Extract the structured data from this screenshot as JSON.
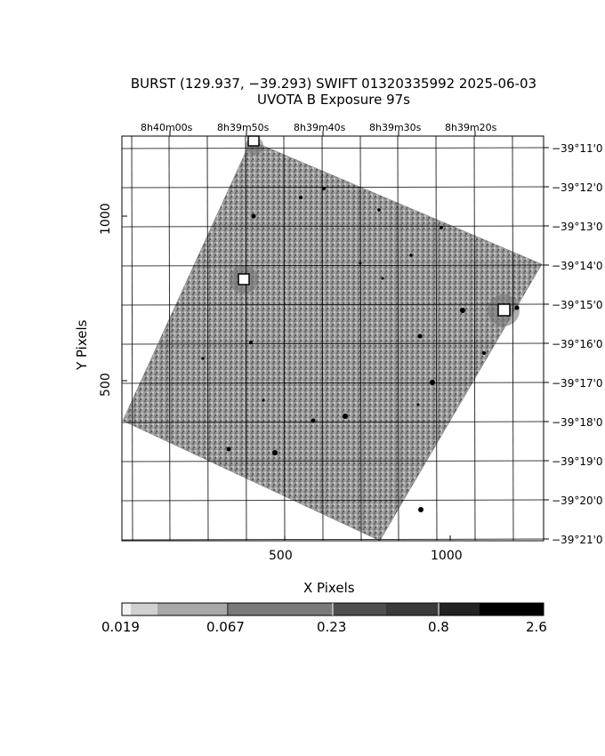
{
  "title": {
    "line1": "BURST (129.937, −39.293) SWIFT 01320335992 2025-06-03",
    "line2": "UVOTA B Exposure        97s"
  },
  "ra_labels": [
    "8h40m00s",
    "8h39m50s",
    "8h39m40s",
    "8h39m30s",
    "8h39m20s"
  ],
  "dec_labels": [
    "−39°11'0",
    "−39°12'0",
    "−39°13'0",
    "−39°14'0",
    "−39°15'0",
    "−39°16'0",
    "−39°17'0",
    "−39°18'0",
    "−39°19'0",
    "−39°20'0",
    "−39°21'0"
  ],
  "x_axis": {
    "label": "X Pixels",
    "ticks": [
      "500",
      "1000"
    ]
  },
  "y_axis": {
    "label": "Y Pixels",
    "ticks": [
      "500",
      "1000"
    ]
  },
  "colorbar": {
    "labels": [
      "0.019",
      "0.067",
      "0.23",
      "0.8",
      "2.6"
    ]
  },
  "colors": {
    "background": "#ffffff",
    "image_noise": "#8c8c8c",
    "stars": "#000000"
  }
}
